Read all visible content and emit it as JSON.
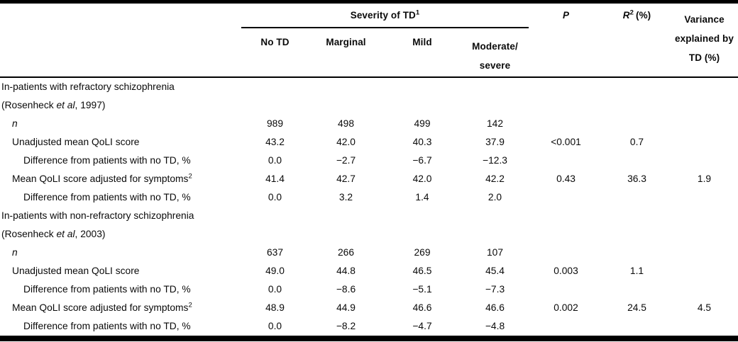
{
  "header": {
    "severity_group": "Severity of TD",
    "severity_sup": "1",
    "columns": [
      "No TD",
      "Marginal",
      "Mild"
    ],
    "moderate_lines": [
      "Moderate/",
      "severe"
    ],
    "p": "P",
    "r2_letter": "R",
    "r2_sup": "2",
    "r2_suffix": "(%)",
    "variance_lines": [
      "Variance",
      "explained by",
      "TD (%)"
    ]
  },
  "sections": [
    {
      "title": "In-patients with refractory schizophrenia",
      "citation_pre": "(Rosenheck ",
      "citation_italic": "et al",
      "citation_post": ", 1997)",
      "rows": [
        {
          "label": "n",
          "italic": true,
          "indent": 1,
          "values": [
            "989",
            "498",
            "499",
            "142",
            "",
            "",
            ""
          ]
        },
        {
          "label": "Unadjusted mean QoLI score",
          "indent": 1,
          "values": [
            "43.2",
            "42.0",
            "40.3",
            "37.9",
            "<0.001",
            "0.7",
            ""
          ]
        },
        {
          "label": "Difference from patients with no TD, %",
          "indent": 2,
          "values": [
            "0.0",
            "−2.7",
            "−6.7",
            "−12.3",
            "",
            "",
            ""
          ]
        },
        {
          "label": "Mean QoLI score adjusted for symptoms",
          "label_sup": "2",
          "indent": 1,
          "values": [
            "41.4",
            "42.7",
            "42.0",
            "42.2",
            "0.43",
            "36.3",
            "1.9"
          ]
        },
        {
          "label": "Difference from patients with no TD, %",
          "indent": 2,
          "values": [
            "0.0",
            "3.2",
            "1.4",
            "2.0",
            "",
            "",
            ""
          ]
        }
      ]
    },
    {
      "title": "In-patients with non-refractory schizophrenia",
      "citation_pre": "(Rosenheck ",
      "citation_italic": "et al",
      "citation_post": ", 2003)",
      "rows": [
        {
          "label": "n",
          "italic": true,
          "indent": 1,
          "values": [
            "637",
            "266",
            "269",
            "107",
            "",
            "",
            ""
          ]
        },
        {
          "label": "Unadjusted mean QoLI score",
          "indent": 1,
          "values": [
            "49.0",
            "44.8",
            "46.5",
            "45.4",
            "0.003",
            "1.1",
            ""
          ]
        },
        {
          "label": "Difference from patients with no TD, %",
          "indent": 2,
          "values": [
            "0.0",
            "−8.6",
            "−5.1",
            "−7.3",
            "",
            "",
            ""
          ]
        },
        {
          "label": "Mean QoLI score adjusted for symptoms",
          "label_sup": "2",
          "indent": 1,
          "values": [
            "48.9",
            "44.9",
            "46.6",
            "46.6",
            "0.002",
            "24.5",
            "4.5"
          ]
        },
        {
          "label": "Difference from patients with no TD, %",
          "indent": 2,
          "values": [
            "0.0",
            "−8.2",
            "−4.7",
            "−4.8",
            "",
            "",
            ""
          ]
        }
      ]
    }
  ]
}
